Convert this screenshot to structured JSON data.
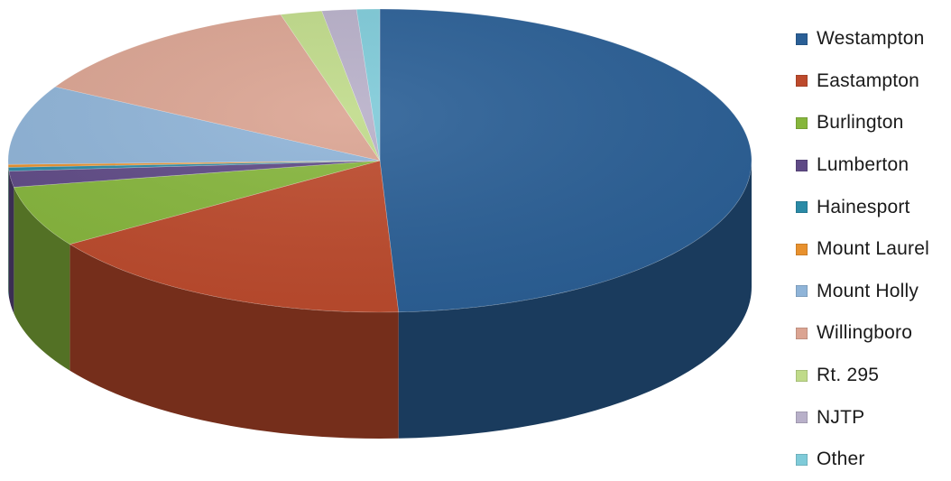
{
  "chart_data": {
    "type": "pie",
    "style": "3d",
    "title": "",
    "legend_position": "right",
    "slices": [
      {
        "name": "Westampton",
        "value": 49.2,
        "color": "#2a5f96"
      },
      {
        "name": "Eastampton",
        "value": 16.5,
        "color": "#bd4a2c"
      },
      {
        "name": "Burlington",
        "value": 6.5,
        "color": "#86b63c"
      },
      {
        "name": "Lumberton",
        "value": 1.7,
        "color": "#5f4a86"
      },
      {
        "name": "Hainesport",
        "value": 0.4,
        "color": "#2a8aa6"
      },
      {
        "name": "Mount Laurel",
        "value": 0.3,
        "color": "#e8912e"
      },
      {
        "name": "Mount Holly",
        "value": 8.5,
        "color": "#8fb4d8"
      },
      {
        "name": "Willingboro",
        "value": 12.6,
        "color": "#dba492"
      },
      {
        "name": "Rt. 295",
        "value": 1.8,
        "color": "#c0db8a"
      },
      {
        "name": "NJTP",
        "value": 1.5,
        "color": "#b8b0c9"
      },
      {
        "name": "Other",
        "value": 1.0,
        "color": "#7fcbd9"
      }
    ]
  }
}
